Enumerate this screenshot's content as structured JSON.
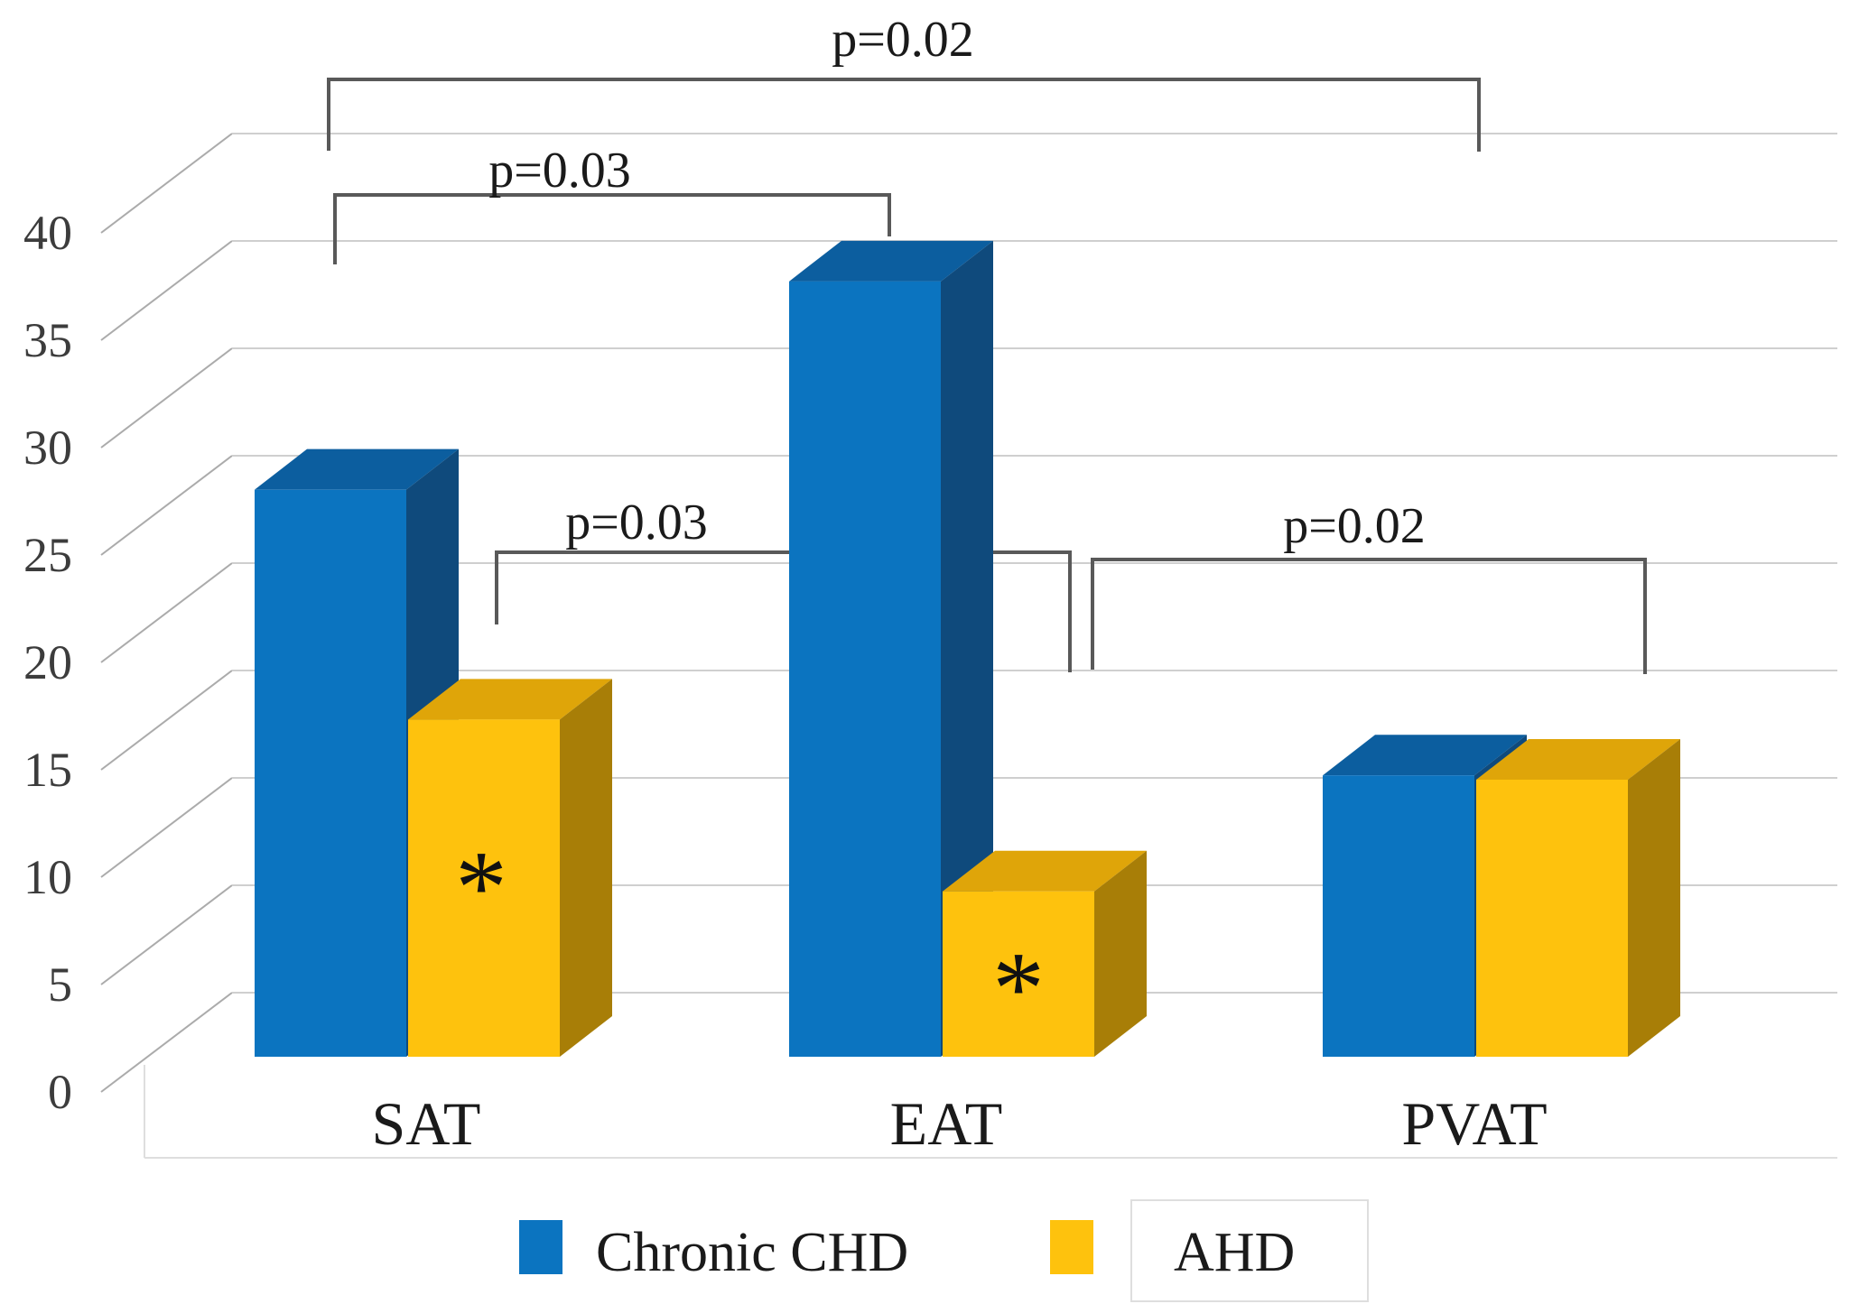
{
  "figure": {
    "background": "#ffffff",
    "text_color": "#1a1a1a",
    "axis_label_color": "#3c3c3c",
    "gridline_color": "#cfcfcf",
    "connector_color": "#ababab",
    "bracket_color": "#595959",
    "border_color": "#dedede"
  },
  "chart_data": {
    "type": "bar",
    "style": "3d-clustered-column",
    "title": "",
    "xlabel": "",
    "ylabel": "",
    "categories": [
      "SAT",
      "EAT",
      "PVAT"
    ],
    "series": [
      {
        "name": "Chronic CHD",
        "color": "#0B74C0",
        "color_top": "#0C5E9F",
        "color_side": "#0F4A7C",
        "values": [
          26.4,
          36.1,
          13.1
        ]
      },
      {
        "name": "AHD",
        "color": "#FEC20D",
        "color_top": "#DFA509",
        "color_side": "#A87E07",
        "values": [
          15.7,
          7.7,
          12.9
        ]
      }
    ],
    "ylim": [
      0,
      40
    ],
    "yticks": [
      0,
      5,
      10,
      15,
      20,
      25,
      30,
      35,
      40
    ],
    "grid": true,
    "legend_position": "bottom",
    "significance_marks": [
      {
        "text": "*",
        "series": "AHD",
        "category": "SAT"
      },
      {
        "text": "*",
        "series": "AHD",
        "category": "EAT"
      }
    ],
    "annotations": [
      {
        "label": "p=0.02",
        "between": [
          "SAT",
          "PVAT"
        ]
      },
      {
        "label": "p=0.03",
        "between": [
          "SAT",
          "EAT"
        ]
      },
      {
        "label": "p=0.03",
        "between": [
          "SAT-AHD",
          "EAT-AHD"
        ]
      },
      {
        "label": "p=0.02",
        "between": [
          "EAT-AHD",
          "PVAT"
        ]
      }
    ]
  }
}
